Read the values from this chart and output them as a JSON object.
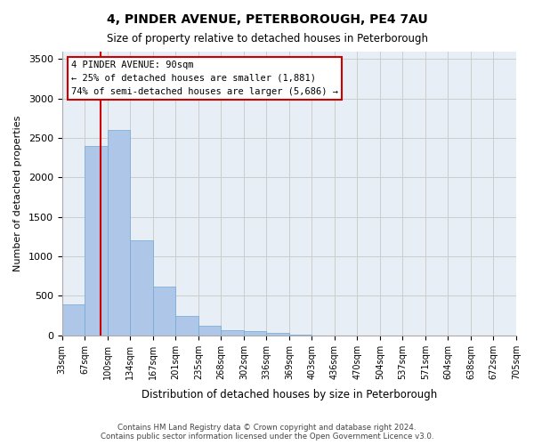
{
  "title": "4, PINDER AVENUE, PETERBOROUGH, PE4 7AU",
  "subtitle": "Size of property relative to detached houses in Peterborough",
  "xlabel": "Distribution of detached houses by size in Peterborough",
  "ylabel": "Number of detached properties",
  "footer_line1": "Contains HM Land Registry data © Crown copyright and database right 2024.",
  "footer_line2": "Contains public sector information licensed under the Open Government Licence v3.0.",
  "bin_labels": [
    "33sqm",
    "67sqm",
    "100sqm",
    "134sqm",
    "167sqm",
    "201sqm",
    "235sqm",
    "268sqm",
    "302sqm",
    "336sqm",
    "369sqm",
    "403sqm",
    "436sqm",
    "470sqm",
    "504sqm",
    "537sqm",
    "571sqm",
    "604sqm",
    "638sqm",
    "672sqm",
    "705sqm"
  ],
  "bar_values": [
    390,
    2400,
    2600,
    1200,
    620,
    250,
    120,
    65,
    55,
    30,
    5,
    0,
    0,
    0,
    0,
    0,
    0,
    0,
    0,
    0
  ],
  "bar_color": "#aec6e8",
  "bar_edge_color": "#6fa8d4",
  "ylim": [
    0,
    3600
  ],
  "yticks": [
    0,
    500,
    1000,
    1500,
    2000,
    2500,
    3000,
    3500
  ],
  "property_line_label": "4 PINDER AVENUE: 90sqm",
  "annotation_line2": "← 25% of detached houses are smaller (1,881)",
  "annotation_line3": "74% of semi-detached houses are larger (5,686) →",
  "annotation_box_color": "#ffffff",
  "annotation_box_edge": "#cc0000",
  "vline_color": "#cc0000",
  "vline_x": 1.7,
  "grid_color": "#cccccc",
  "background_color": "#e8eef6"
}
